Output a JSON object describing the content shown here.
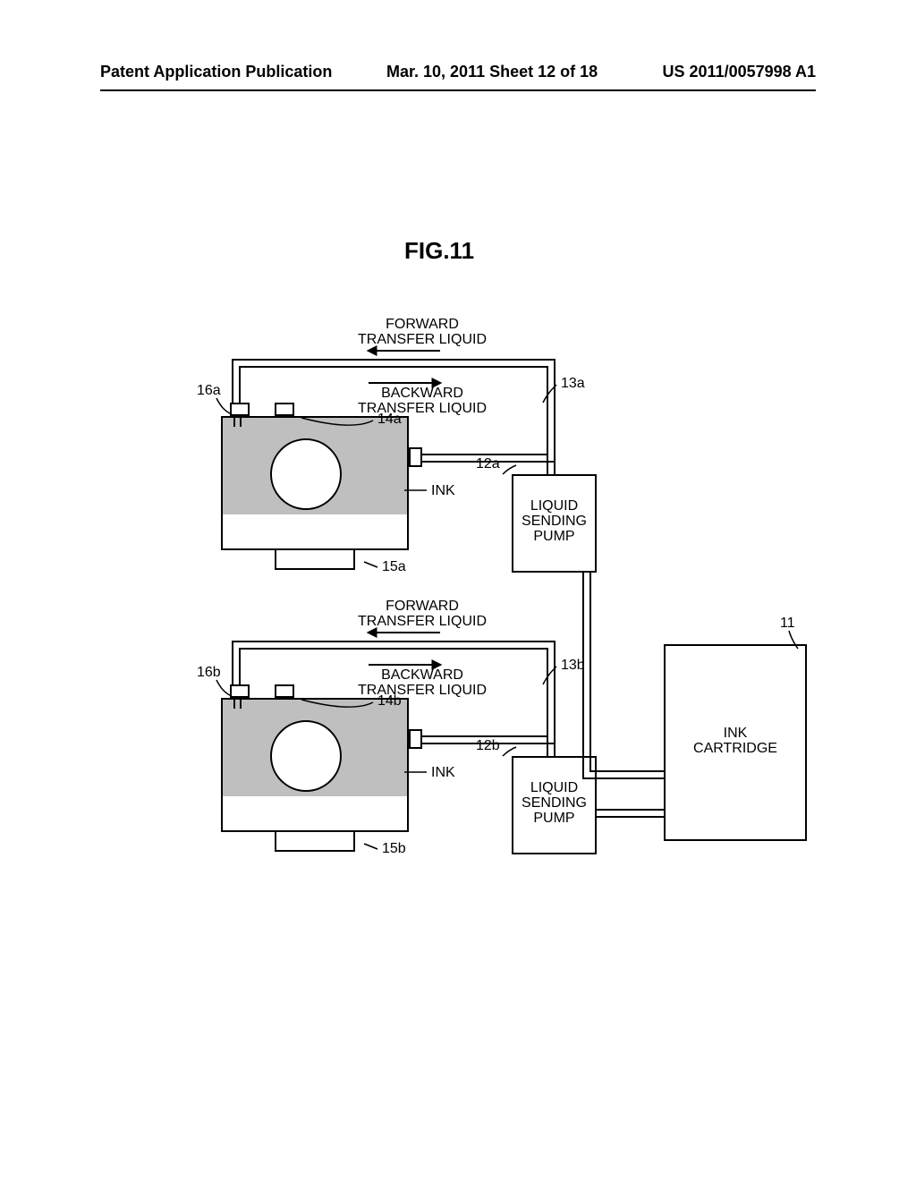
{
  "header": {
    "left": "Patent Application Publication",
    "center": "Mar. 10, 2011  Sheet 12 of 18",
    "right": "US 2011/0057998 A1"
  },
  "figure_title": "FIG.11",
  "labels": {
    "forward_a": "FORWARD\nTRANSFER LIQUID",
    "backward_a": "BACKWARD\nTRANSFER LIQUID",
    "forward_b": "FORWARD\nTRANSFER LIQUID",
    "backward_b": "BACKWARD\nTRANSFER LIQUID",
    "ink_a": "INK",
    "ink_b": "INK",
    "pump_a": "LIQUID\nSENDING\nPUMP",
    "pump_b": "LIQUID\nSENDING\nPUMP",
    "cartridge": "INK\nCARTRIDGE"
  },
  "refs": {
    "r16a": "16a",
    "r14a": "14a",
    "r13a": "13a",
    "r12a": "12a",
    "r15a": "15a",
    "r16b": "16b",
    "r14b": "14b",
    "r13b": "13b",
    "r12b": "12b",
    "r15b": "15b",
    "r11": "11"
  },
  "style": {
    "stroke": "#000000",
    "stroke_width": 2,
    "bg": "#ffffff",
    "ink_fill": "#bfbfbf"
  }
}
